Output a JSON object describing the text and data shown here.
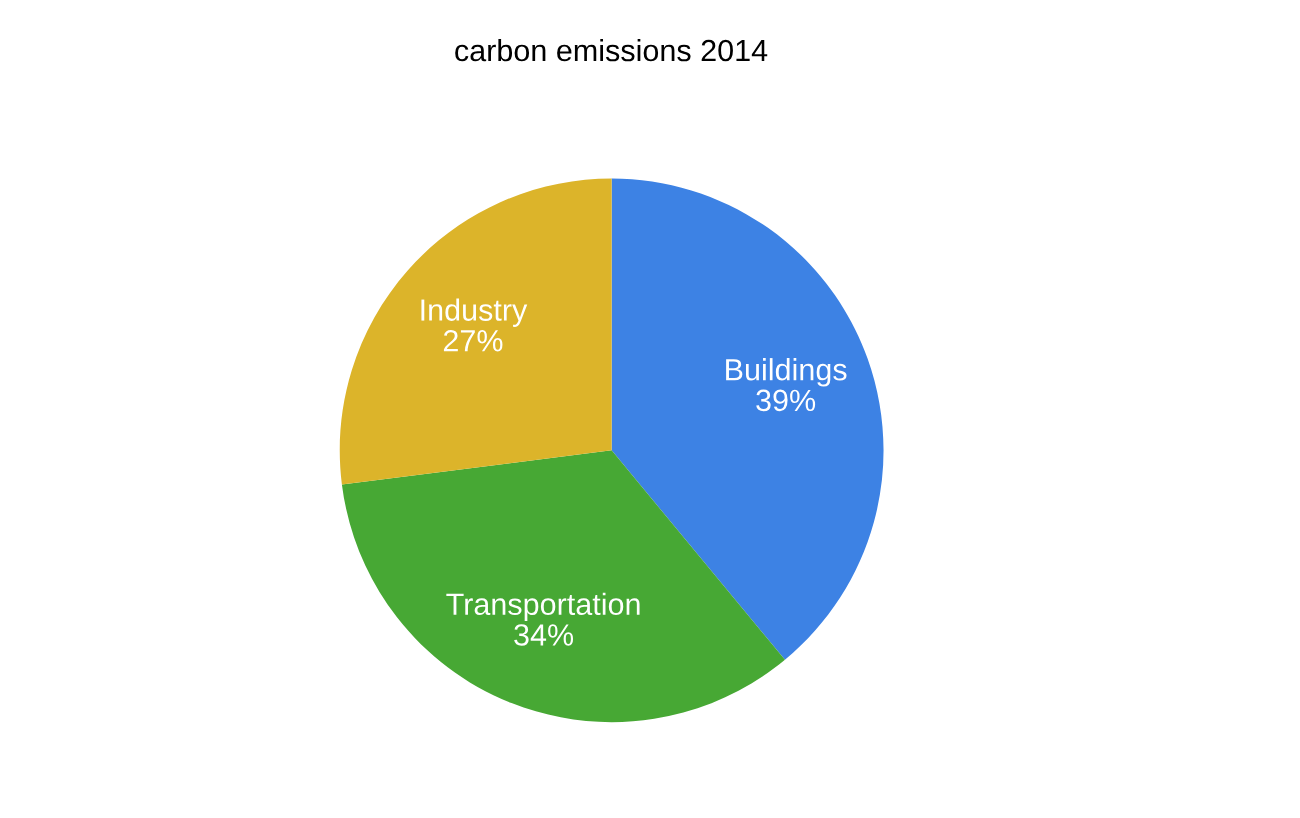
{
  "chart_data": {
    "type": "pie",
    "title": "carbon emissions 2014",
    "categories": [
      "Buildings",
      "Transportation",
      "Industry"
    ],
    "values": [
      39,
      34,
      27
    ],
    "value_labels": [
      "39%",
      "34%",
      "27%"
    ],
    "colors": [
      "#3d82e4",
      "#47a834",
      "#dcb42a"
    ]
  }
}
